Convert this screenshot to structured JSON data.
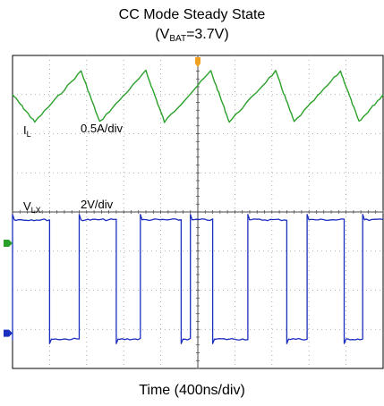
{
  "chart_data": {
    "type": "line",
    "title_line1": "CC Mode Steady State",
    "title_line2": {
      "prefix": "(V",
      "sub": "BAT",
      "suffix": "=3.7V)"
    },
    "xlabel": "Time (400ns/div)",
    "x_scale": "400 ns/div",
    "x_divisions": 10,
    "y_divisions": 8,
    "grid": true,
    "series": [
      {
        "name_main": "I",
        "name_sub": "L",
        "scale": "0.5A/div",
        "waveform": "triangle",
        "color": "#2aa02a",
        "x_div": [
          0.0,
          0.6,
          1.85,
          2.35,
          3.6,
          4.1,
          5.35,
          5.85,
          7.1,
          7.6,
          8.85,
          9.35,
          10.0
        ],
        "y_div": [
          7.0,
          6.3,
          7.6,
          6.3,
          7.6,
          6.3,
          7.6,
          6.3,
          7.6,
          6.3,
          7.6,
          6.3,
          7.0
        ]
      },
      {
        "name_main": "V",
        "name_sub": "LX",
        "scale": "2V/div",
        "waveform": "square",
        "color": "#1a2fbf",
        "high_div": 3.8,
        "low_div": 0.75,
        "rise_div": [
          0.0,
          1.8,
          3.45,
          4.8,
          6.35,
          7.95,
          9.45
        ],
        "fall_div": [
          1.0,
          2.8,
          4.55,
          5.4,
          7.4,
          8.95
        ]
      }
    ]
  }
}
